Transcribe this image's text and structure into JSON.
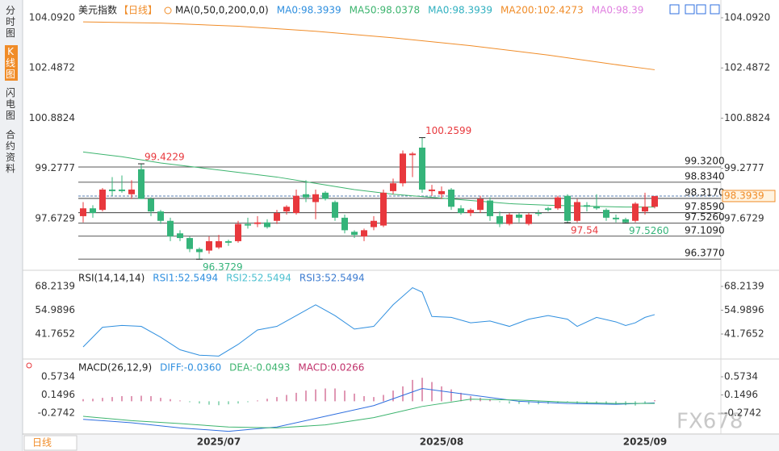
{
  "sidebar": {
    "tabs": [
      "分时图",
      "K线图",
      "闪电图",
      "合约资料"
    ]
  },
  "period_tab": "日线",
  "watermark": "FX678",
  "chart_data": [
    {
      "type": "candlestick",
      "title": "美元指数",
      "period": "【日线】",
      "indicator": "MA(0,50,0,200,0,0)",
      "legend": [
        {
          "label": "MA0:98.3939",
          "color": "#2f8fdf"
        },
        {
          "label": "MA50:98.0378",
          "color": "#3cb46e"
        },
        {
          "label": "MA0:98.3939",
          "color": "#30b0c0"
        },
        {
          "label": "MA200:102.4273",
          "color": "#f08c28"
        },
        {
          "label": "MA0:98.39",
          "color": "#e080e0"
        }
      ],
      "categories": [
        null,
        null,
        null,
        null,
        null,
        null,
        null,
        null,
        null,
        null,
        null,
        null,
        null,
        null,
        "2025/07",
        null,
        null,
        null,
        null,
        null,
        null,
        null,
        null,
        null,
        null,
        null,
        null,
        null,
        null,
        null,
        null,
        null,
        null,
        null,
        null,
        null,
        null,
        "2025/08",
        null,
        null,
        null,
        null,
        null,
        null,
        null,
        null,
        null,
        null,
        null,
        null,
        null,
        null,
        null,
        null,
        null,
        null,
        null,
        null,
        "2025/09",
        null
      ],
      "open": [
        97.75,
        98.0,
        97.95,
        98.6,
        98.6,
        98.45,
        99.25,
        98.3,
        97.9,
        97.6,
        97.2,
        97.05,
        96.7,
        96.65,
        96.75,
        96.95,
        96.95,
        97.5,
        97.5,
        97.55,
        97.6,
        97.9,
        97.85,
        98.45,
        98.2,
        98.5,
        98.2,
        97.7,
        97.25,
        97.1,
        97.4,
        97.45,
        98.55,
        98.8,
        99.7,
        99.94,
        98.55,
        98.45,
        98.6,
        98.0,
        97.85,
        97.95,
        98.25,
        97.75,
        97.5,
        97.8,
        97.5,
        97.85,
        98.0,
        98.0,
        98.4,
        97.6,
        98.1,
        98.05,
        97.95,
        97.7,
        97.65,
        97.6,
        97.9,
        98.05
      ],
      "high": [
        98.2,
        98.1,
        98.65,
        99.0,
        99.05,
        98.9,
        99.4229,
        98.35,
        97.95,
        97.7,
        97.3,
        97.1,
        96.75,
        97.1,
        97.15,
        97.0,
        97.6,
        97.7,
        97.75,
        97.65,
        97.95,
        98.1,
        98.6,
        98.9,
        98.6,
        98.55,
        98.25,
        97.8,
        97.3,
        97.35,
        97.75,
        98.6,
        98.95,
        99.85,
        99.8,
        100.2599,
        98.75,
        98.7,
        98.65,
        98.1,
        98.0,
        98.4,
        98.35,
        97.9,
        97.85,
        97.85,
        97.85,
        97.95,
        98.05,
        98.4,
        98.45,
        98.3,
        98.2,
        98.45,
        98.0,
        97.8,
        97.7,
        98.2,
        98.5,
        98.4
      ],
      "low": [
        97.55,
        97.7,
        97.9,
        98.4,
        98.5,
        98.3,
        98.3,
        97.75,
        97.5,
        96.95,
        96.95,
        96.6,
        96.3729,
        96.55,
        96.7,
        96.8,
        96.9,
        97.35,
        97.4,
        97.35,
        97.5,
        97.8,
        97.8,
        98.2,
        97.65,
        98.25,
        97.6,
        97.2,
        97.05,
        96.95,
        97.3,
        97.4,
        98.45,
        98.7,
        99.0,
        98.5,
        98.4,
        98.3,
        97.95,
        97.8,
        97.75,
        97.85,
        97.6,
        97.4,
        97.45,
        97.55,
        97.45,
        97.75,
        97.9,
        97.95,
        97.54,
        97.55,
        97.9,
        97.95,
        97.6,
        97.55,
        97.526,
        97.55,
        97.8,
        98.0
      ],
      "close": [
        98.0,
        97.85,
        98.6,
        98.55,
        98.55,
        98.6,
        98.3,
        97.9,
        97.6,
        97.1,
        97.05,
        96.7,
        96.6,
        96.95,
        96.95,
        96.9,
        97.5,
        97.45,
        97.55,
        97.4,
        97.85,
        98.05,
        98.4,
        98.35,
        98.45,
        98.3,
        97.7,
        97.3,
        97.15,
        97.3,
        97.6,
        98.5,
        98.8,
        99.75,
        99.75,
        98.6,
        98.6,
        98.55,
        98.05,
        97.85,
        97.95,
        98.3,
        97.75,
        97.5,
        97.8,
        97.7,
        97.8,
        97.82,
        97.95,
        98.35,
        97.6,
        98.2,
        98.05,
        98.0,
        97.7,
        97.65,
        97.55,
        98.15,
        98.05,
        98.39
      ],
      "up_color": "#e8383d",
      "down_color": "#35b47a",
      "lines": [
        {
          "color": "#3cb46e",
          "x": [
            0,
            4,
            8,
            12,
            16,
            20,
            24,
            28,
            32,
            36,
            40,
            44,
            48,
            52,
            56,
            59
          ],
          "values": [
            99.8,
            99.65,
            99.45,
            99.3,
            99.15,
            99.0,
            98.8,
            98.6,
            98.45,
            98.35,
            98.25,
            98.15,
            98.1,
            98.07,
            98.04,
            98.04
          ]
        },
        {
          "color": "#f08c28",
          "x": [
            0,
            8,
            16,
            24,
            32,
            40,
            48,
            56,
            59
          ],
          "values": [
            103.96,
            103.92,
            103.82,
            103.66,
            103.45,
            103.2,
            102.9,
            102.55,
            102.43
          ]
        }
      ],
      "ylim": [
        96.02,
        104.53
      ],
      "yticks": [
        {
          "value": 104.092,
          "label": "104.0920"
        },
        102.4872,
        100.8824,
        99.2777,
        97.6729
      ],
      "levels": [
        {
          "value": 99.32,
          "label": "99.3200"
        },
        {
          "value": 98.834,
          "label": "98.8340"
        },
        {
          "value": 98.317,
          "label": "98.3170"
        },
        {
          "value": 97.859,
          "label": "97.8590"
        },
        {
          "value": 97.526,
          "label": "97.5260"
        },
        {
          "value": 97.109,
          "label": "97.1090"
        },
        {
          "value": 96.377,
          "label": "96.3770"
        }
      ],
      "last": {
        "value": 98.3939,
        "label": "98.3939"
      },
      "extremes": [
        {
          "index": 35,
          "value": 100.2599,
          "label": "100.2599",
          "color": "#e8383d",
          "pos": "above"
        },
        {
          "index": 6,
          "value": 99.4229,
          "label": "99.4229",
          "color": "#e8383d",
          "pos": "above"
        },
        {
          "index": 12,
          "value": 96.3729,
          "label": "96.3729",
          "color": "#35b47a",
          "pos": "below"
        },
        {
          "index": 50,
          "value": 97.54,
          "label": "97.54",
          "color": "#e8383d",
          "pos": "below"
        },
        {
          "index": 56,
          "value": 97.526,
          "label": "97.5260",
          "color": "#35b47a",
          "pos": "below"
        }
      ]
    },
    {
      "type": "line",
      "title": "RSI(14,14,14)",
      "legend": [
        {
          "label": "RSI1:52.5494",
          "color": "#2f8fdf"
        },
        {
          "label": "RSI2:52.5494",
          "color": "#4cc0d0"
        },
        {
          "label": "RSI3:52.5494",
          "color": "#3b7bd0"
        }
      ],
      "series": [
        {
          "color": "#2f8fdf",
          "x": [
            0,
            2,
            4,
            6,
            8,
            10,
            12,
            14,
            16,
            18,
            20,
            22,
            24,
            26,
            28,
            30,
            32,
            34,
            35,
            36,
            38,
            40,
            42,
            44,
            46,
            48,
            50,
            51,
            53,
            55,
            56,
            57,
            58,
            59
          ],
          "values": [
            34.6,
            45.5,
            46.5,
            46,
            40,
            33,
            30,
            29.5,
            36,
            44,
            46,
            52,
            58,
            52,
            44.5,
            46,
            58,
            67.5,
            65,
            51.5,
            51,
            48,
            49,
            46,
            50,
            52,
            50,
            46,
            51,
            48.5,
            46.5,
            48,
            51,
            52.55
          ]
        }
      ],
      "ylim": [
        27.86,
        74.94
      ],
      "yticks": [
        68.2139,
        54.9896,
        41.7652
      ]
    },
    {
      "type": "macd",
      "title": "MACD(26,12,9)",
      "legend": [
        {
          "label": "DIFF:-0.0360",
          "color": "#2f8fdf"
        },
        {
          "label": "DEA:-0.0493",
          "color": "#3cb46e"
        },
        {
          "label": "MACD:0.0266",
          "color": "#c0306a"
        }
      ],
      "values": [
        0.05,
        0.06,
        0.08,
        0.1,
        0.12,
        0.12,
        0.13,
        0.12,
        0.08,
        0.05,
        0.02,
        -0.02,
        -0.05,
        -0.08,
        -0.09,
        -0.07,
        -0.05,
        -0.02,
        0.02,
        0.06,
        0.1,
        0.15,
        0.2,
        0.25,
        0.28,
        0.3,
        0.3,
        0.25,
        0.18,
        0.12,
        0.1,
        0.15,
        0.25,
        0.35,
        0.5,
        0.55,
        0.45,
        0.35,
        0.28,
        0.2,
        0.12,
        0.08,
        0.05,
        -0.02,
        -0.05,
        -0.06,
        -0.07,
        -0.07,
        -0.06,
        -0.04,
        -0.03,
        -0.06,
        -0.05,
        -0.05,
        -0.06,
        -0.08,
        -0.09,
        -0.1,
        -0.06,
        0.0266
      ],
      "up_color": "#c0306a",
      "down_color": "#35b47a",
      "series": [
        {
          "color": "#2f6fdf",
          "x": [
            0,
            5,
            10,
            15,
            20,
            25,
            30,
            35,
            40,
            45,
            50,
            55,
            59
          ],
          "values": [
            -0.42,
            -0.5,
            -0.62,
            -0.7,
            -0.6,
            -0.35,
            -0.1,
            0.3,
            0.15,
            0.0,
            -0.05,
            -0.07,
            -0.036
          ]
        },
        {
          "color": "#3cb46e",
          "x": [
            0,
            5,
            10,
            15,
            20,
            25,
            30,
            35,
            40,
            45,
            50,
            55,
            59
          ],
          "values": [
            -0.35,
            -0.45,
            -0.52,
            -0.6,
            -0.62,
            -0.55,
            -0.38,
            -0.12,
            0.05,
            0.03,
            -0.02,
            -0.05,
            -0.0493
          ]
        }
      ],
      "ylim": [
        -0.764,
        0.931
      ],
      "yticks": [
        0.5734,
        0.1496,
        -0.2742
      ]
    }
  ]
}
